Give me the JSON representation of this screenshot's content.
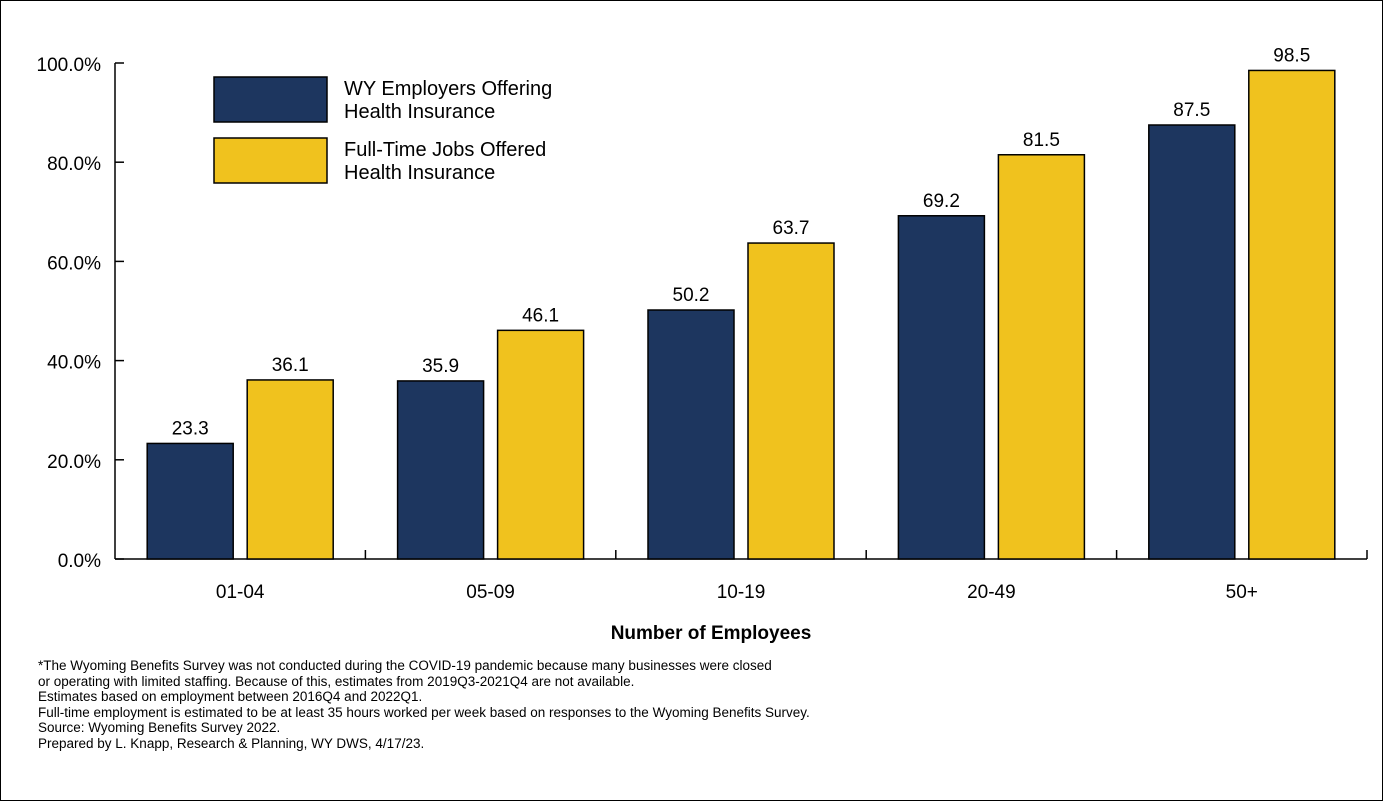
{
  "chart_data": {
    "type": "bar",
    "title": "",
    "xlabel": "Number of Employees",
    "ylabel": "",
    "ylim": [
      0,
      100
    ],
    "yticks": [
      0,
      20,
      40,
      60,
      80,
      100
    ],
    "ytick_labels": [
      "0.0%",
      "20.0%",
      "40.0%",
      "60.0%",
      "80.0%",
      "100.0%"
    ],
    "categories": [
      "01-04",
      "05-09",
      "10-19",
      "20-49",
      "50+"
    ],
    "series": [
      {
        "name": "WY Employers Offering Health Insurance",
        "legend_lines": [
          "WY Employers Offering",
          "Health Insurance"
        ],
        "color": "#1d365f",
        "values": [
          23.3,
          35.9,
          50.2,
          69.2,
          87.5
        ],
        "labels": [
          "23.3",
          "35.9",
          "50.2",
          "69.2",
          "87.5"
        ]
      },
      {
        "name": "Full-Time Jobs Offered Health Insurance",
        "legend_lines": [
          "Full-Time Jobs Offered",
          "Health Insurance"
        ],
        "color": "#f0c21e",
        "values": [
          36.1,
          46.1,
          63.7,
          81.5,
          98.5
        ],
        "labels": [
          "36.1",
          "46.1",
          "63.7",
          "81.5",
          "98.5"
        ]
      }
    ],
    "grid": false,
    "legend_position": "top-left"
  },
  "notes": [
    "*The Wyoming Benefits Survey was not conducted during the COVID-19 pandemic because many businesses were closed",
    "or operating with limited staffing. Because of this, estimates from 2019Q3-2021Q4 are not available.",
    "Estimates based on employment between 2016Q4 and 2022Q1.",
    "Full-time employment is estimated to be at least 35 hours worked per week based on responses to the Wyoming Benefits Survey.",
    "Source: Wyoming Benefits Survey 2022.",
    "Prepared by L. Knapp, Research & Planning, WY DWS, 4/17/23."
  ]
}
